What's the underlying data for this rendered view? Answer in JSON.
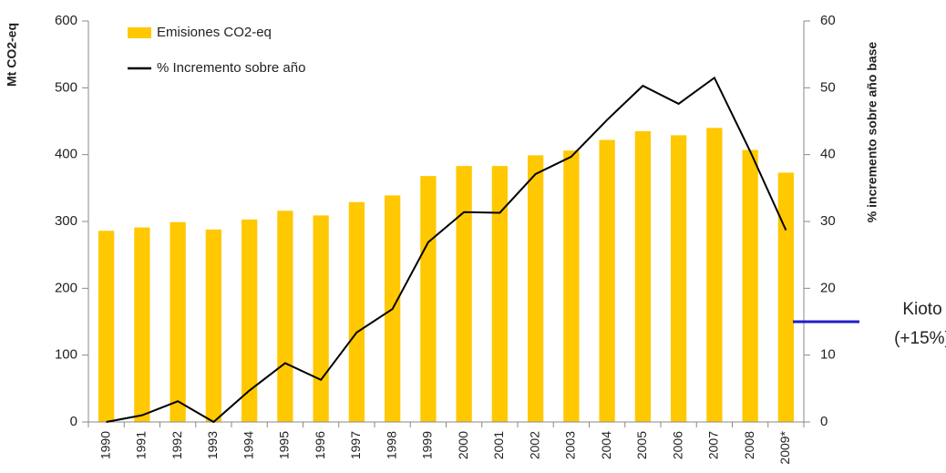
{
  "chart_data": {
    "type": "bar_line",
    "y_label": "Mt CO2-eq",
    "y2_label": "% incremento sobre año base",
    "categories": [
      "1990",
      "1991",
      "1992",
      "1993",
      "1994",
      "1995",
      "1996",
      "1997",
      "1998",
      "1999",
      "2000",
      "2001",
      "2002",
      "2003",
      "2004",
      "2005",
      "2006",
      "2007",
      "2008",
      "2009*"
    ],
    "series": [
      {
        "name": "Emisiones CO2-eq",
        "type": "bar",
        "color": "#FFC800",
        "values": [
          286,
          291,
          299,
          288,
          303,
          316,
          309,
          329,
          339,
          368,
          383,
          383,
          399,
          406,
          422,
          435,
          429,
          440,
          407,
          373
        ]
      },
      {
        "name": "% Incremento sobre año",
        "type": "line",
        "color": "#000000",
        "axis": "y2",
        "values": [
          0,
          1,
          3.1,
          0,
          4.7,
          8.8,
          6.3,
          13.4,
          16.9,
          26.9,
          31.4,
          31.3,
          37.1,
          39.7,
          45.2,
          50.3,
          47.6,
          51.5,
          40.5,
          28.7
        ]
      }
    ],
    "ylim": [
      0,
      600
    ],
    "yticks": [
      0,
      100,
      200,
      300,
      400,
      500,
      600
    ],
    "y2lim": [
      0,
      60
    ],
    "y2ticks": [
      0,
      10,
      20,
      30,
      40,
      50,
      60
    ],
    "target": {
      "value": 15,
      "color": "#1f1fc8",
      "lines": [
        "Kioto",
        "(+15%)"
      ]
    }
  }
}
